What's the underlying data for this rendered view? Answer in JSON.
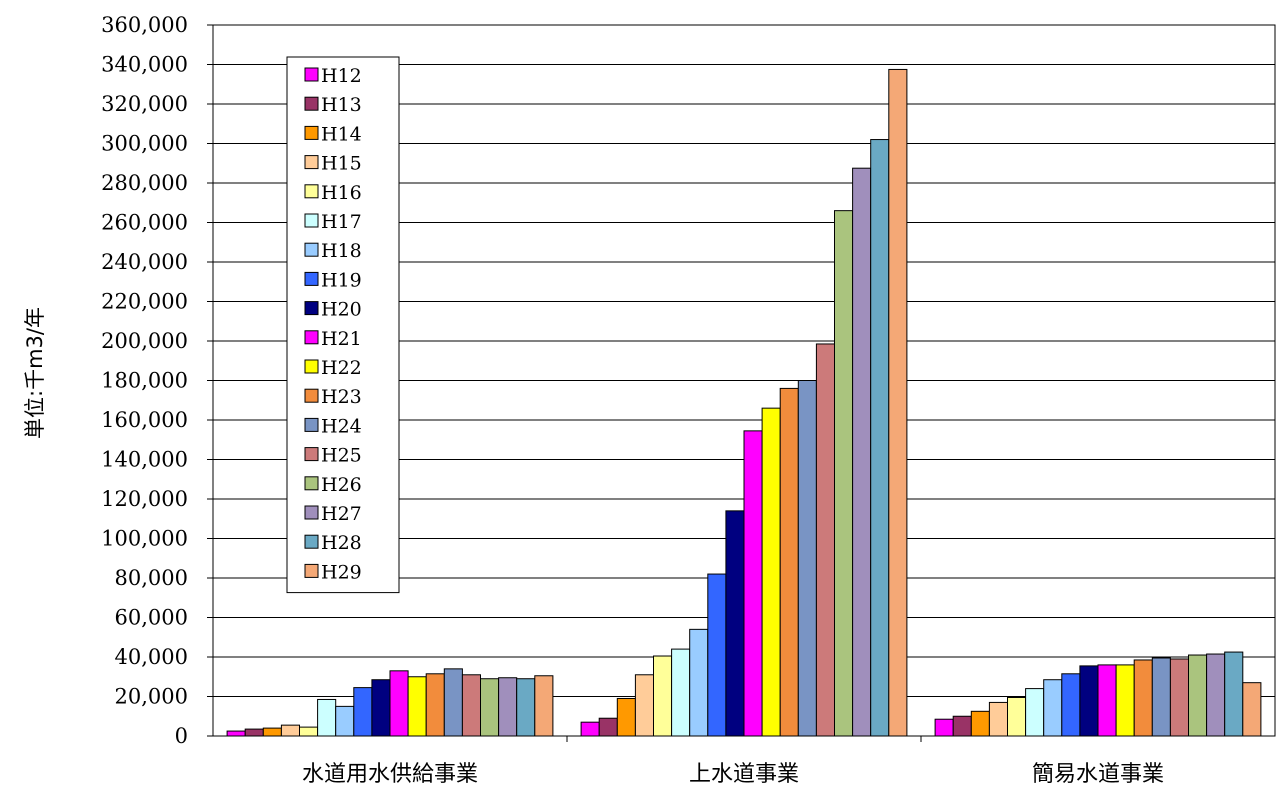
{
  "chart_data": {
    "type": "bar",
    "ylabel": "単位:千m3/年",
    "ylim": [
      0,
      360000
    ],
    "ytick_step": 20000,
    "grid": true,
    "legend_position": "top-left",
    "categories": [
      "水道用水供給事業",
      "上水道事業",
      "簡易水道事業"
    ],
    "series": [
      {
        "name": "H12",
        "color": "#ff00ff",
        "values": [
          2500,
          7000,
          8500
        ]
      },
      {
        "name": "H13",
        "color": "#993366",
        "values": [
          3500,
          9000,
          10000
        ]
      },
      {
        "name": "H14",
        "color": "#ff9900",
        "values": [
          4000,
          19000,
          12500
        ]
      },
      {
        "name": "H15",
        "color": "#ffcc99",
        "values": [
          5500,
          31000,
          17000
        ]
      },
      {
        "name": "H16",
        "color": "#ffff99",
        "values": [
          4500,
          40500,
          19500
        ]
      },
      {
        "name": "H17",
        "color": "#ccffff",
        "values": [
          18500,
          44000,
          24000
        ]
      },
      {
        "name": "H18",
        "color": "#99ccff",
        "values": [
          15000,
          54000,
          28500
        ]
      },
      {
        "name": "H19",
        "color": "#3366ff",
        "values": [
          24500,
          82000,
          31500
        ]
      },
      {
        "name": "H20",
        "color": "#000080",
        "values": [
          28500,
          114000,
          35500
        ]
      },
      {
        "name": "H21",
        "color": "#ff00ff",
        "values": [
          33000,
          154500,
          36000
        ]
      },
      {
        "name": "H22",
        "color": "#ffff00",
        "values": [
          30000,
          166000,
          36000
        ]
      },
      {
        "name": "H23",
        "color": "#f28c3c",
        "values": [
          31500,
          176000,
          38500
        ]
      },
      {
        "name": "H24",
        "color": "#7994c4",
        "values": [
          34000,
          180000,
          39500
        ]
      },
      {
        "name": "H25",
        "color": "#cc7a7a",
        "values": [
          31000,
          198500,
          39000
        ]
      },
      {
        "name": "H26",
        "color": "#aac47e",
        "values": [
          29000,
          266000,
          41000
        ]
      },
      {
        "name": "H27",
        "color": "#a08fbc",
        "values": [
          29500,
          287500,
          41500
        ]
      },
      {
        "name": "H28",
        "color": "#6aa9c4",
        "values": [
          29000,
          302000,
          42500
        ]
      },
      {
        "name": "H29",
        "color": "#f4a876",
        "values": [
          30500,
          337500,
          27000
        ]
      }
    ]
  }
}
